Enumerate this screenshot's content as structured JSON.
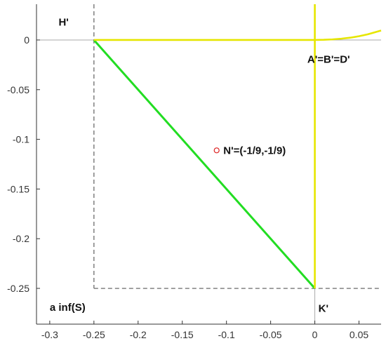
{
  "chart_data": {
    "type": "line",
    "title": "",
    "xlabel": "",
    "ylabel": "",
    "xlim": [
      -0.315,
      0.075
    ],
    "ylim": [
      -0.286,
      0.036
    ],
    "xticks": [
      -0.3,
      -0.25,
      -0.2,
      -0.15,
      -0.1,
      -0.05,
      0,
      0.05
    ],
    "xtick_labels": [
      "-0.3",
      "-0.25",
      "-0.2",
      "-0.15",
      "-0.1",
      "-0.05",
      "0",
      "0.05"
    ],
    "yticks": [
      0,
      -0.05,
      -0.1,
      -0.15,
      -0.2,
      -0.25
    ],
    "ytick_labels": [
      "0",
      "-0.05",
      "-0.1",
      "-0.15",
      "-0.2",
      "-0.25"
    ],
    "grid": false,
    "colors": {
      "green": "#22dd22",
      "yellow": "#e6e600",
      "axis_line": "#aaaaaa",
      "dashed": "#777777",
      "marker": "#dd2222"
    },
    "series": [
      {
        "style": "green-line",
        "x": [
          -0.25,
          0
        ],
        "y": [
          0,
          -0.25
        ]
      },
      {
        "style": "yellow-horizontal",
        "x": [
          -0.25,
          0.0
        ],
        "y": [
          0,
          0
        ]
      },
      {
        "style": "yellow-vertical",
        "x": [
          0,
          0
        ],
        "y": [
          -0.25,
          0.036
        ]
      },
      {
        "style": "yellow-curve",
        "x": [
          0,
          0.01,
          0.02,
          0.03,
          0.04,
          0.05,
          0.06,
          0.075
        ],
        "y": [
          0,
          0.0002,
          0.0006,
          0.0013,
          0.0023,
          0.0038,
          0.0057,
          0.0095
        ]
      }
    ],
    "guide_lines": [
      {
        "x": [
          -0.25,
          -0.25
        ],
        "y": [
          0.036,
          -0.25
        ]
      },
      {
        "x": [
          -0.25,
          0.075
        ],
        "y": [
          -0.25,
          -0.25
        ]
      }
    ],
    "points": [
      {
        "label": "N'=(-1/9,-1/9)",
        "x": -0.1111,
        "y": -0.1111
      }
    ],
    "annotations": [
      {
        "text": "H'",
        "x": -0.29,
        "y": 0.018
      },
      {
        "text": "A'=B'=D'",
        "x": -0.0085,
        "y": -0.0195
      },
      {
        "text": "N'=(-1/9,-1/9)",
        "x": -0.1035,
        "y": -0.1111
      },
      {
        "text": "a inf(S)",
        "x": -0.3,
        "y": -0.269
      },
      {
        "text": "K'",
        "x": 0.004,
        "y": -0.27
      }
    ]
  }
}
